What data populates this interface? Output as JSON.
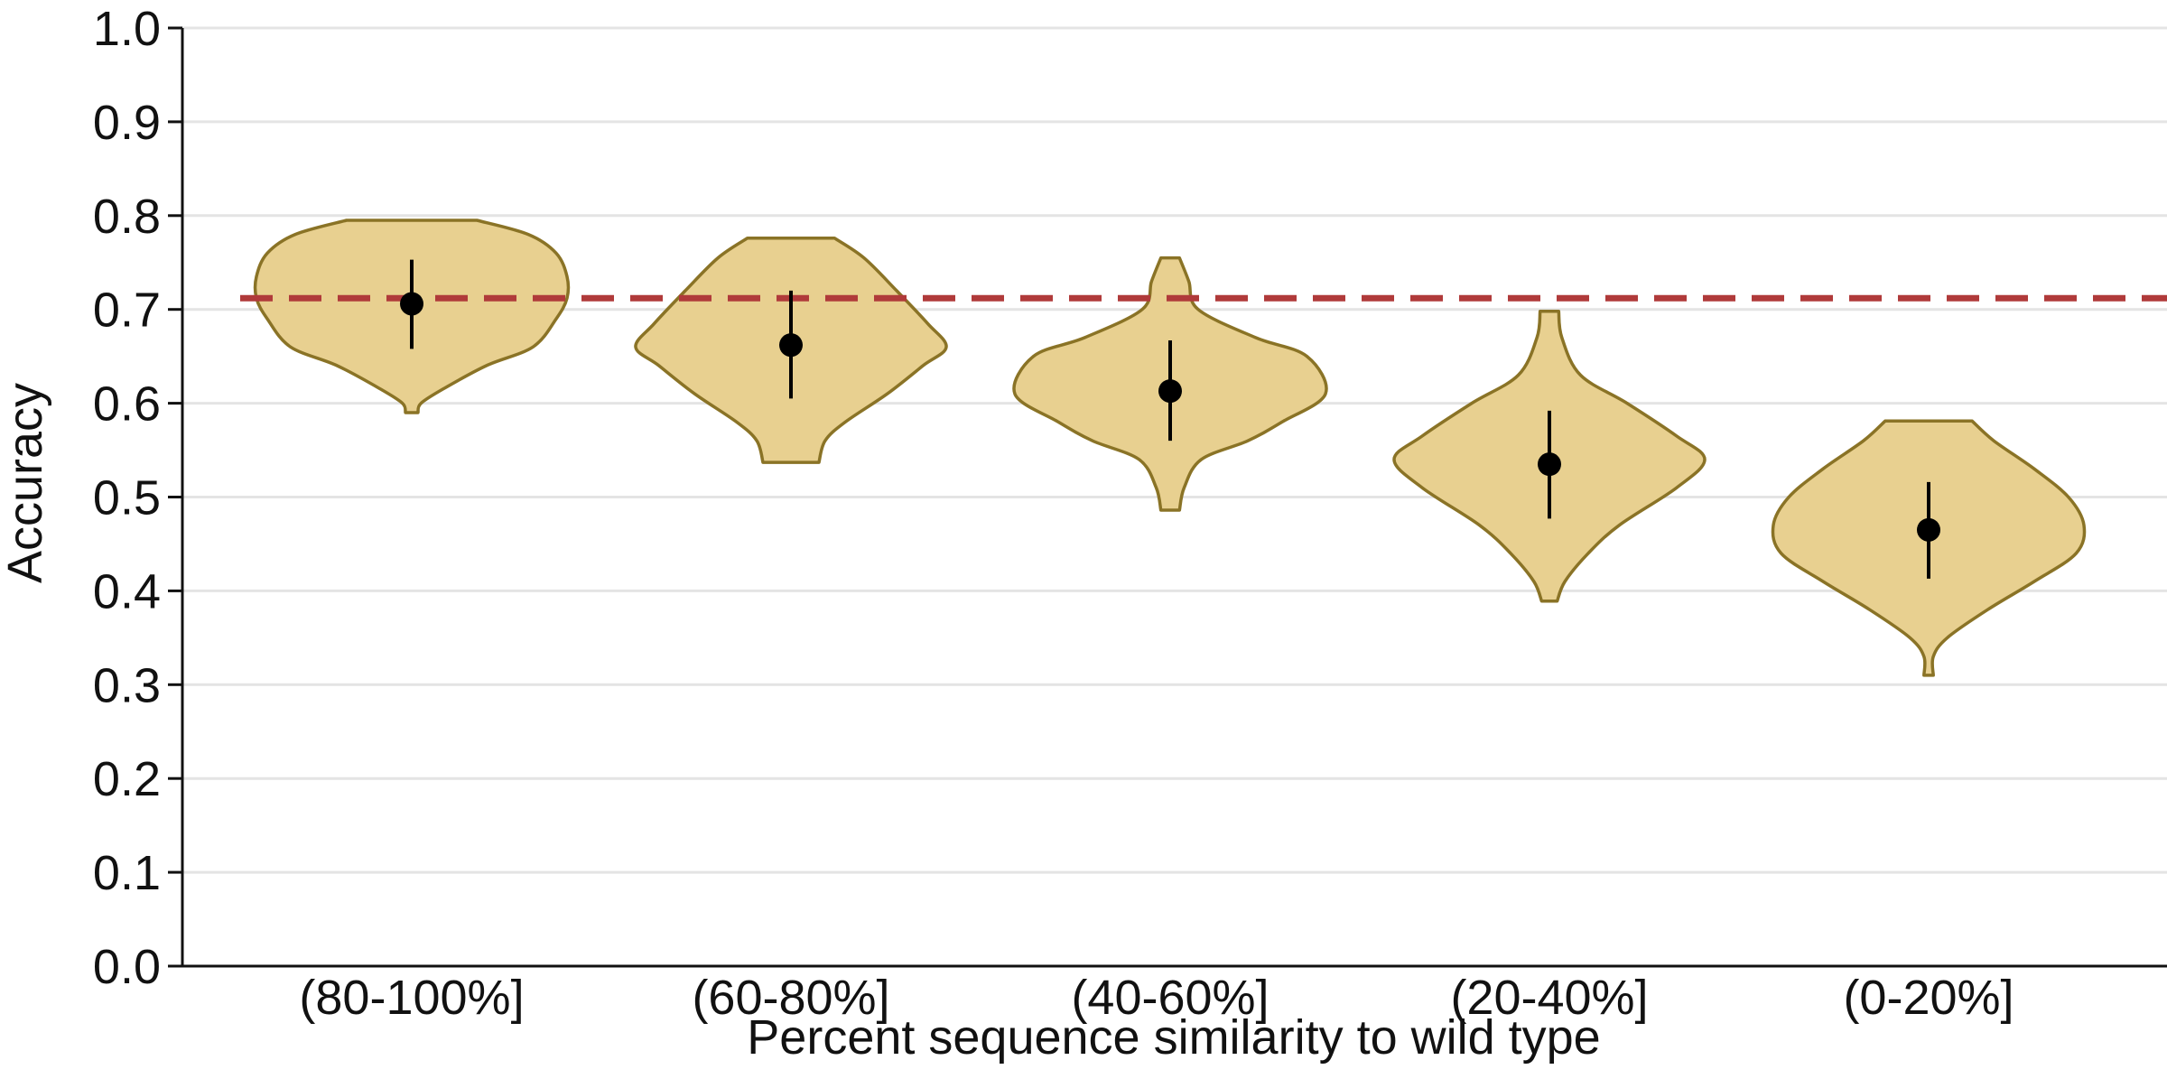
{
  "chart_data": {
    "type": "violin",
    "title": "",
    "xlabel": "Percent sequence similarity to wild type",
    "ylabel": "Accuracy",
    "ylim": [
      0.0,
      1.0
    ],
    "yticks": [
      "0.0",
      "0.1",
      "0.2",
      "0.3",
      "0.4",
      "0.5",
      "0.6",
      "0.7",
      "0.8",
      "0.9",
      "1.0"
    ],
    "grid": "horizontal",
    "categories": [
      "(80-100%]",
      "(60-80%]",
      "(40-60%]",
      "(20-40%]",
      "(0-20%]"
    ],
    "reference_line": {
      "value": 0.712,
      "style": "dashed",
      "color": "#b03a3a"
    },
    "colors": {
      "violin_fill": "#e8d090",
      "violin_edge": "#8a7326",
      "point": "#000000",
      "grid": "#e4e4e4"
    },
    "violins": [
      {
        "category": "(80-100%]",
        "mean": 0.706,
        "err_low": 0.658,
        "err_high": 0.753,
        "min": 0.59,
        "max": 0.795,
        "profile": [
          [
            0.795,
            0.42
          ],
          [
            0.78,
            0.75
          ],
          [
            0.76,
            0.93
          ],
          [
            0.735,
            1.0
          ],
          [
            0.712,
            1.0
          ],
          [
            0.69,
            0.93
          ],
          [
            0.66,
            0.78
          ],
          [
            0.64,
            0.48
          ],
          [
            0.615,
            0.2
          ],
          [
            0.6,
            0.06
          ],
          [
            0.59,
            0.04
          ]
        ]
      },
      {
        "category": "(60-80%]",
        "mean": 0.662,
        "err_low": 0.605,
        "err_high": 0.72,
        "min": 0.537,
        "max": 0.776,
        "profile": [
          [
            0.776,
            0.28
          ],
          [
            0.755,
            0.47
          ],
          [
            0.72,
            0.68
          ],
          [
            0.685,
            0.88
          ],
          [
            0.66,
            1.0
          ],
          [
            0.64,
            0.85
          ],
          [
            0.61,
            0.62
          ],
          [
            0.58,
            0.35
          ],
          [
            0.56,
            0.22
          ],
          [
            0.537,
            0.18
          ]
        ]
      },
      {
        "category": "(40-60%]",
        "mean": 0.613,
        "err_low": 0.56,
        "err_high": 0.667,
        "min": 0.486,
        "max": 0.755,
        "profile": [
          [
            0.755,
            0.06
          ],
          [
            0.73,
            0.12
          ],
          [
            0.7,
            0.18
          ],
          [
            0.67,
            0.55
          ],
          [
            0.65,
            0.88
          ],
          [
            0.61,
            1.0
          ],
          [
            0.58,
            0.72
          ],
          [
            0.56,
            0.5
          ],
          [
            0.54,
            0.2
          ],
          [
            0.51,
            0.09
          ],
          [
            0.486,
            0.06
          ]
        ]
      },
      {
        "category": "(20-40%]",
        "mean": 0.535,
        "err_low": 0.477,
        "err_high": 0.592,
        "min": 0.389,
        "max": 0.698,
        "profile": [
          [
            0.698,
            0.06
          ],
          [
            0.67,
            0.08
          ],
          [
            0.63,
            0.2
          ],
          [
            0.6,
            0.5
          ],
          [
            0.565,
            0.82
          ],
          [
            0.54,
            1.0
          ],
          [
            0.51,
            0.82
          ],
          [
            0.47,
            0.45
          ],
          [
            0.44,
            0.25
          ],
          [
            0.41,
            0.1
          ],
          [
            0.389,
            0.05
          ]
        ]
      },
      {
        "category": "(0-20%]",
        "mean": 0.465,
        "err_low": 0.413,
        "err_high": 0.516,
        "min": 0.31,
        "max": 0.581,
        "profile": [
          [
            0.581,
            0.28
          ],
          [
            0.56,
            0.42
          ],
          [
            0.53,
            0.68
          ],
          [
            0.5,
            0.9
          ],
          [
            0.47,
            1.0
          ],
          [
            0.44,
            0.95
          ],
          [
            0.41,
            0.68
          ],
          [
            0.38,
            0.38
          ],
          [
            0.35,
            0.12
          ],
          [
            0.33,
            0.03
          ],
          [
            0.31,
            0.03
          ]
        ]
      }
    ]
  }
}
